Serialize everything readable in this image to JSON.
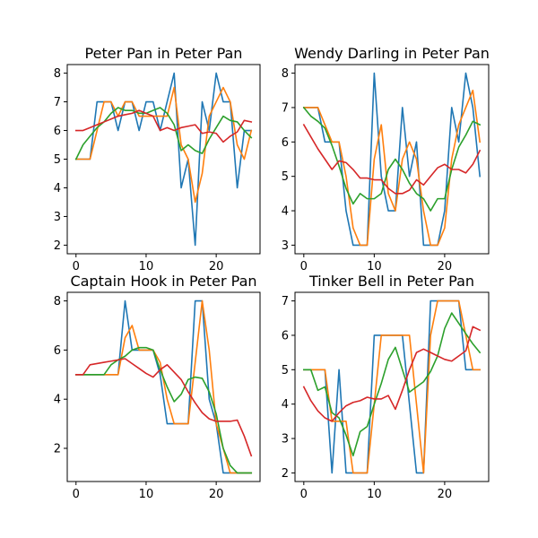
{
  "chart_data": [
    {
      "type": "line",
      "title": "Peter Pan in Peter Pan",
      "x": [
        0,
        1,
        2,
        3,
        4,
        5,
        6,
        7,
        8,
        9,
        10,
        11,
        12,
        13,
        14,
        15,
        16,
        17,
        18,
        19,
        20,
        21,
        22,
        23,
        24,
        25
      ],
      "xlim": [
        -1.25,
        26.25
      ],
      "ylim": [
        1.7,
        8.3
      ],
      "xticks": [
        0,
        10,
        20
      ],
      "yticks": [
        2,
        3,
        4,
        5,
        6,
        7,
        8
      ],
      "series": [
        {
          "color": "#1f77b4",
          "values": [
            5,
            5,
            5,
            7,
            7,
            7,
            6,
            7,
            7,
            6,
            7,
            7,
            6,
            7,
            8,
            4,
            5,
            2,
            7,
            6,
            8,
            7,
            7,
            4,
            6,
            6
          ]
        },
        {
          "color": "#ff7f0e",
          "values": [
            5,
            5,
            5,
            6,
            7,
            7,
            6.5,
            7,
            7,
            6.5,
            6.5,
            6.5,
            6.5,
            6.5,
            7.5,
            5.5,
            5,
            3.5,
            4.5,
            6.5,
            7,
            7.5,
            7,
            5.5,
            5,
            6
          ]
        },
        {
          "color": "#2ca02c",
          "values": [
            5,
            5.5,
            5.8,
            6.1,
            6.3,
            6.6,
            6.8,
            6.7,
            6.7,
            6.6,
            6.6,
            6.7,
            6.8,
            6.6,
            6.2,
            5.3,
            5.5,
            5.3,
            5.2,
            5.7,
            6.1,
            6.5,
            6.35,
            6.3,
            6.0,
            5.75
          ]
        },
        {
          "color": "#d62728",
          "values": [
            6,
            6,
            6.1,
            6.2,
            6.3,
            6.4,
            6.5,
            6.55,
            6.6,
            6.7,
            6.6,
            6.5,
            6.0,
            6.1,
            6.0,
            6.1,
            6.15,
            6.2,
            5.9,
            5.95,
            5.9,
            5.6,
            5.8,
            5.95,
            6.35,
            6.3
          ]
        }
      ]
    },
    {
      "type": "line",
      "title": "Wendy Darling in Peter Pan",
      "x": [
        0,
        1,
        2,
        3,
        4,
        5,
        6,
        7,
        8,
        9,
        10,
        11,
        12,
        13,
        14,
        15,
        16,
        17,
        18,
        19,
        20,
        21,
        22,
        23,
        24,
        25
      ],
      "xlim": [
        -1.25,
        26.25
      ],
      "ylim": [
        2.75,
        8.25
      ],
      "xticks": [
        0,
        10,
        20
      ],
      "yticks": [
        3,
        4,
        5,
        6,
        7,
        8
      ],
      "series": [
        {
          "color": "#1f77b4",
          "values": [
            7,
            7,
            7,
            6,
            6,
            6,
            4,
            3,
            3,
            3,
            8,
            5,
            4,
            4,
            7,
            5,
            6,
            3,
            3,
            3,
            4,
            7,
            6,
            8,
            7,
            5
          ]
        },
        {
          "color": "#ff7f0e",
          "values": [
            7,
            7,
            7,
            6.5,
            6,
            6,
            5,
            3.5,
            3,
            3,
            5.5,
            6.5,
            4.5,
            4,
            5.5,
            6,
            5.5,
            4,
            3,
            3,
            3.5,
            5.5,
            6.5,
            7,
            7.5,
            6
          ]
        },
        {
          "color": "#2ca02c",
          "values": [
            7,
            6.75,
            6.6,
            6.4,
            5.9,
            5.3,
            4.65,
            4.2,
            4.5,
            4.35,
            4.35,
            4.5,
            5.2,
            5.5,
            5.2,
            4.8,
            4.5,
            4.35,
            4.0,
            4.35,
            4.35,
            5.2,
            5.85,
            6.2,
            6.6,
            6.5
          ]
        },
        {
          "color": "#d62728",
          "values": [
            6.5,
            6.15,
            5.8,
            5.5,
            5.2,
            5.45,
            5.4,
            5.2,
            4.95,
            4.95,
            4.9,
            4.9,
            4.65,
            4.5,
            4.5,
            4.6,
            4.9,
            4.75,
            5.0,
            5.25,
            5.35,
            5.2,
            5.2,
            5.1,
            5.35,
            5.75
          ]
        }
      ]
    },
    {
      "type": "line",
      "title": "Captain Hook in Peter Pan",
      "x": [
        0,
        1,
        2,
        3,
        4,
        5,
        6,
        7,
        8,
        9,
        10,
        11,
        12,
        13,
        14,
        15,
        16,
        17,
        18,
        19,
        20,
        21,
        22,
        23,
        24,
        25
      ],
      "xlim": [
        -1.25,
        26.25
      ],
      "ylim": [
        0.65,
        8.35
      ],
      "xticks": [
        0,
        10,
        20
      ],
      "yticks": [
        2,
        4,
        6,
        8
      ],
      "series": [
        {
          "color": "#1f77b4",
          "values": [
            5,
            5,
            5,
            5,
            5,
            5,
            5,
            8,
            6,
            6,
            6,
            6,
            5,
            3,
            3,
            3,
            3,
            8,
            8,
            4,
            3,
            1,
            1,
            1,
            1,
            1
          ]
        },
        {
          "color": "#ff7f0e",
          "values": [
            5,
            5,
            5,
            5,
            5,
            5,
            5,
            6.5,
            7,
            6,
            6,
            6,
            5.5,
            4,
            3,
            3,
            3,
            5.5,
            8,
            6,
            3,
            2,
            1,
            1,
            1,
            1
          ]
        },
        {
          "color": "#2ca02c",
          "values": [
            5,
            5,
            5,
            5,
            5,
            5.4,
            5.6,
            5.75,
            6.0,
            6.1,
            6.1,
            6.0,
            5.2,
            4.5,
            3.9,
            4.2,
            4.8,
            4.9,
            4.85,
            4.3,
            3.4,
            2.0,
            1.3,
            1.0,
            1.0,
            1.0
          ]
        },
        {
          "color": "#d62728",
          "values": [
            5,
            5,
            5.4,
            5.45,
            5.5,
            5.55,
            5.6,
            5.65,
            5.45,
            5.25,
            5.05,
            4.9,
            5.2,
            5.4,
            5.1,
            4.8,
            4.3,
            3.85,
            3.45,
            3.2,
            3.1,
            3.1,
            3.1,
            3.15,
            2.5,
            1.7
          ]
        }
      ]
    },
    {
      "type": "line",
      "title": "Tinker Bell in Peter Pan",
      "x": [
        0,
        1,
        2,
        3,
        4,
        5,
        6,
        7,
        8,
        9,
        10,
        11,
        12,
        13,
        14,
        15,
        16,
        17,
        18,
        19,
        20,
        21,
        22,
        23,
        24,
        25
      ],
      "xlim": [
        -1.25,
        26.25
      ],
      "ylim": [
        1.75,
        7.25
      ],
      "xticks": [
        0,
        10,
        20
      ],
      "yticks": [
        2,
        3,
        4,
        5,
        6,
        7
      ],
      "series": [
        {
          "color": "#1f77b4",
          "values": [
            5,
            5,
            5,
            5,
            2,
            5,
            2,
            2,
            2,
            2,
            6,
            6,
            6,
            6,
            6,
            4,
            2,
            2,
            7,
            7,
            7,
            7,
            7,
            5,
            5,
            5
          ]
        },
        {
          "color": "#ff7f0e",
          "values": [
            5,
            5,
            5,
            5,
            3.5,
            3.5,
            3.5,
            2,
            2,
            2,
            4,
            6,
            6,
            6,
            6,
            6,
            4,
            2,
            6,
            7,
            7,
            7,
            7,
            6,
            5,
            5
          ]
        },
        {
          "color": "#2ca02c",
          "values": [
            5,
            5,
            4.4,
            4.5,
            3.75,
            3.6,
            3.1,
            2.5,
            3.2,
            3.35,
            4.0,
            4.6,
            5.3,
            5.65,
            5.0,
            4.35,
            4.5,
            4.65,
            4.95,
            5.4,
            6.2,
            6.65,
            6.35,
            6.05,
            5.75,
            5.5
          ]
        },
        {
          "color": "#d62728",
          "values": [
            4.5,
            4.1,
            3.8,
            3.6,
            3.5,
            3.75,
            3.95,
            4.05,
            4.1,
            4.2,
            4.15,
            4.15,
            4.25,
            3.85,
            4.4,
            5.0,
            5.5,
            5.6,
            5.5,
            5.4,
            5.3,
            5.25,
            5.4,
            5.55,
            6.25,
            6.15
          ]
        }
      ]
    }
  ]
}
